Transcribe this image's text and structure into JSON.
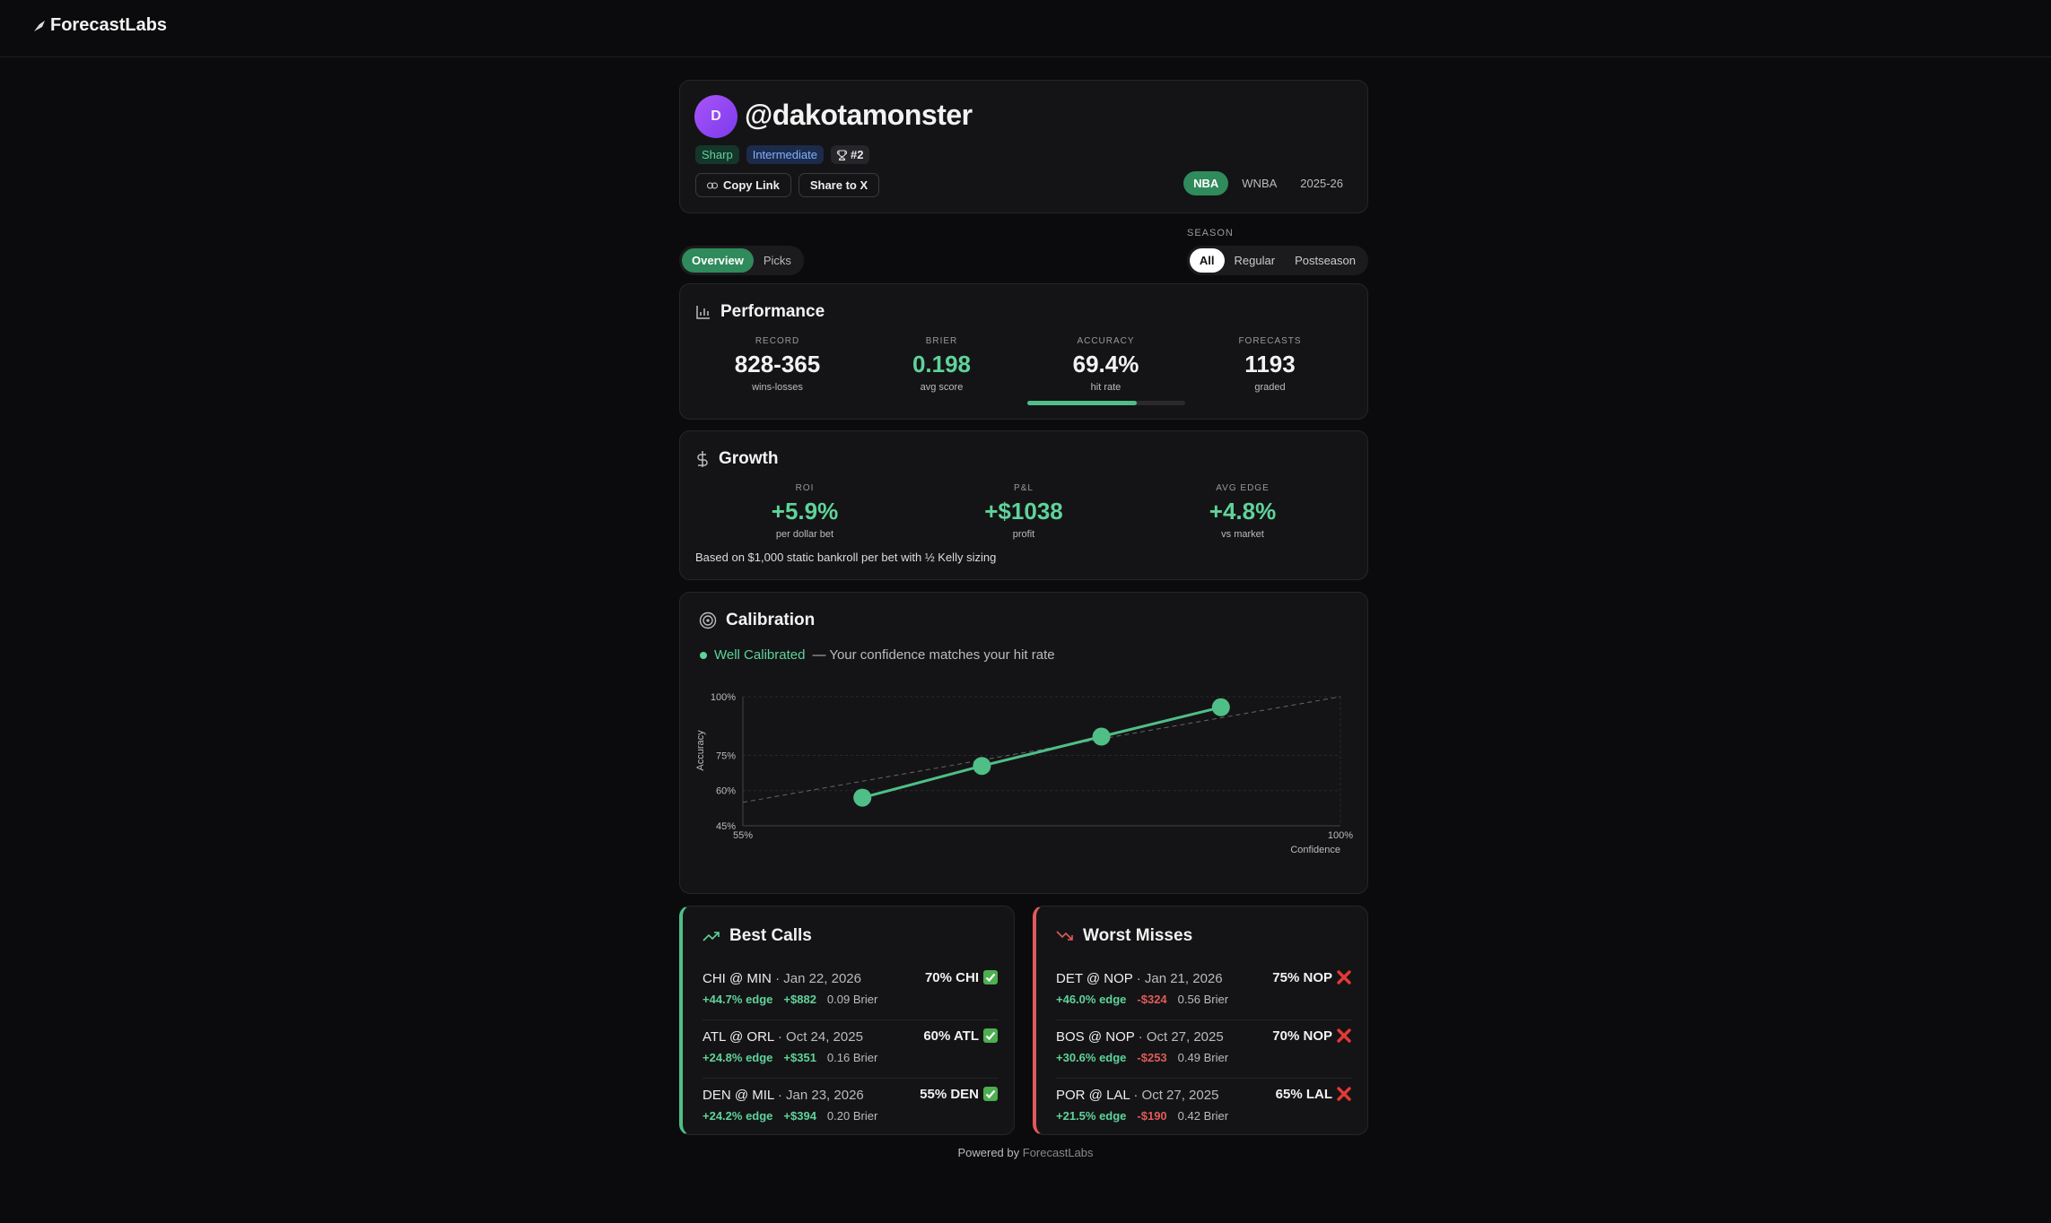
{
  "header": {
    "brand": "ForecastLabs"
  },
  "profile": {
    "avatar": "D",
    "handle": "@dakotamonster",
    "badges": [
      "Sharp",
      "Intermediate",
      "#2"
    ],
    "actions": [
      "Copy Link",
      "Share to X"
    ],
    "leagues": [
      "NBA",
      "WNBA"
    ],
    "season": "2025-26"
  },
  "tabs": [
    "Overview",
    "Picks"
  ],
  "season_filter": {
    "label": "SEASON",
    "options": [
      "All",
      "Regular",
      "Postseason"
    ]
  },
  "performance": {
    "title": "Performance",
    "stats": [
      {
        "label": "RECORD",
        "value": "828-365",
        "caption": "wins-losses"
      },
      {
        "label": "BRIER",
        "value": "0.198",
        "caption": "avg score"
      },
      {
        "label": "ACCURACY",
        "value": "69.4%",
        "caption": "hit rate",
        "progress": 69.4
      },
      {
        "label": "FORECASTS",
        "value": "1193",
        "caption": "graded"
      }
    ]
  },
  "growth": {
    "title": "Growth",
    "stats": [
      {
        "label": "ROI",
        "value": "+5.9%",
        "caption": "per dollar bet"
      },
      {
        "label": "P&L",
        "value": "+$1038",
        "caption": "profit"
      },
      {
        "label": "AVG EDGE",
        "value": "+4.8%",
        "caption": "vs market"
      }
    ],
    "note": "Based on $1,000 static bankroll per bet with ½ Kelly sizing"
  },
  "calibration": {
    "title": "Calibration",
    "status": "Well Calibrated",
    "description": "— Your confidence matches your hit rate"
  },
  "chart_data": {
    "type": "line",
    "x_label": "Confidence",
    "y_label": "Accuracy",
    "x": [
      64,
      73,
      82,
      91
    ],
    "series": [
      {
        "name": "Calibration",
        "color": "#4fbf87",
        "values": [
          57,
          70.5,
          83,
          95.5
        ]
      }
    ],
    "xlim": [
      55,
      100
    ],
    "xticks": [
      {
        "value": 55,
        "label": "55%"
      },
      {
        "value": 100,
        "label": "100%"
      }
    ],
    "ylim": [
      45,
      100
    ],
    "yticks": [
      {
        "value": 45,
        "label": "45%"
      },
      {
        "value": 60,
        "label": "60%"
      },
      {
        "value": 75,
        "label": "75%"
      },
      {
        "value": 100,
        "label": "100%"
      }
    ],
    "grid": true
  },
  "best_calls": {
    "title": "Best Calls",
    "rows": [
      {
        "game": "CHI @ MIN",
        "date": "· Jan 22, 2026",
        "pick": "70% CHI",
        "edge": "+44.7% edge",
        "pnl": "+$882",
        "brier": "0.09 Brier"
      },
      {
        "game": "ATL @ ORL",
        "date": "· Oct 24, 2025",
        "pick": "60% ATL",
        "edge": "+24.8% edge",
        "pnl": "+$351",
        "brier": "0.16 Brier"
      },
      {
        "game": "DEN @ MIL",
        "date": "· Jan 23, 2026",
        "pick": "55% DEN",
        "edge": "+24.2% edge",
        "pnl": "+$394",
        "brier": "0.20 Brier"
      }
    ]
  },
  "worst_misses": {
    "title": "Worst Misses",
    "rows": [
      {
        "game": "DET @ NOP",
        "date": "· Jan 21, 2026",
        "pick": "75% NOP",
        "edge": "+46.0% edge",
        "pnl": "-$324",
        "brier": "0.56 Brier"
      },
      {
        "game": "BOS @ NOP",
        "date": "· Oct 27, 2025",
        "pick": "70% NOP",
        "edge": "+30.6% edge",
        "pnl": "-$253",
        "brier": "0.49 Brier"
      },
      {
        "game": "POR @ LAL",
        "date": "· Oct 27, 2025",
        "pick": "65% LAL",
        "edge": "+21.5% edge",
        "pnl": "-$190",
        "brier": "0.42 Brier"
      }
    ]
  },
  "footer": {
    "text": "Powered by",
    "link": "ForecastLabs"
  }
}
